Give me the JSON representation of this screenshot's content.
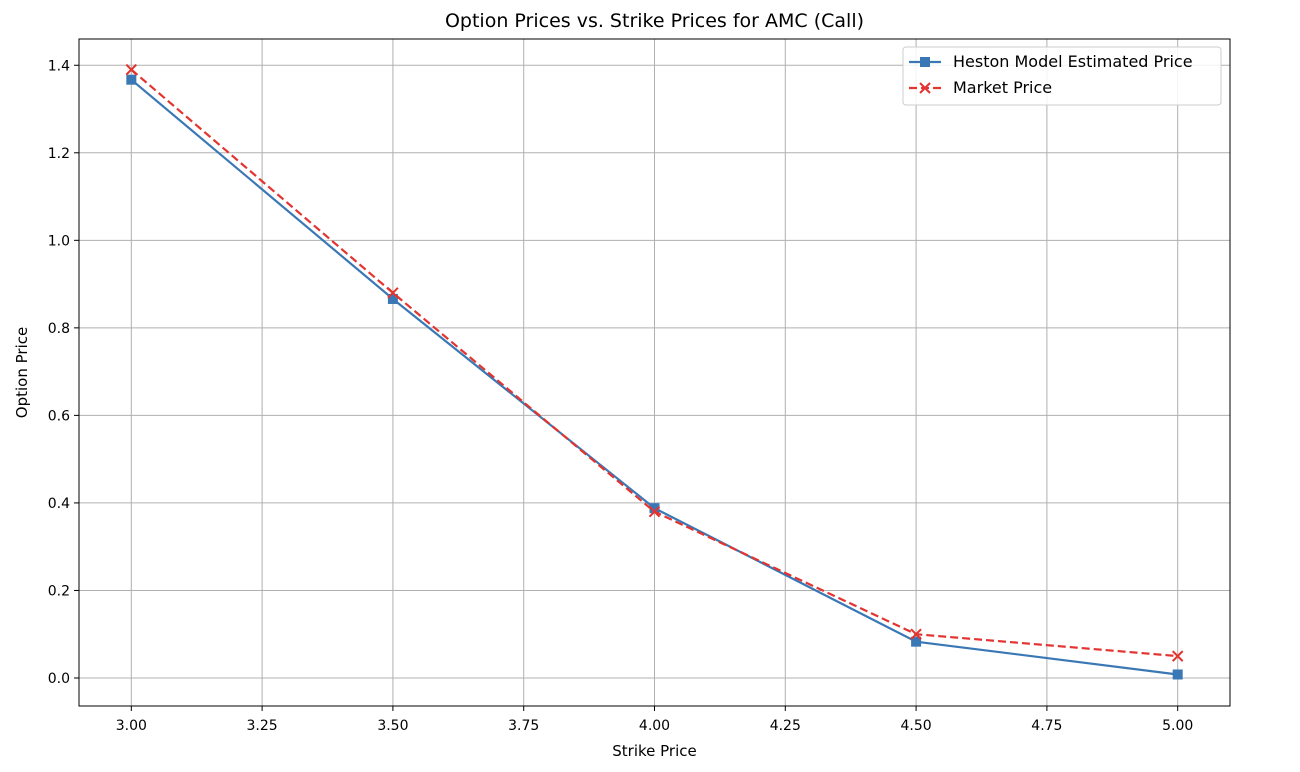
{
  "chart_data": {
    "type": "line",
    "title": "Option Prices vs. Strike Prices for AMC (Call)",
    "xlabel": "Strike Price",
    "ylabel": "Option Price",
    "x": [
      3.0,
      3.5,
      4.0,
      4.5,
      5.0
    ],
    "xlim": [
      2.9,
      5.1
    ],
    "ylim": [
      -0.064,
      1.46
    ],
    "xticks": [
      "3.00",
      "3.25",
      "3.50",
      "3.75",
      "4.00",
      "4.25",
      "4.50",
      "4.75",
      "5.00"
    ],
    "yticks": [
      "0.0",
      "0.2",
      "0.4",
      "0.6",
      "0.8",
      "1.0",
      "1.2",
      "1.4"
    ],
    "grid": true,
    "legend_position": "top-right",
    "series": [
      {
        "name": "Heston Model Estimated Price",
        "values": [
          1.367,
          0.866,
          0.388,
          0.083,
          0.008
        ],
        "color": "#3a78b5",
        "line_style": "solid",
        "marker": "square"
      },
      {
        "name": "Market Price",
        "values": [
          1.39,
          0.88,
          0.38,
          0.1,
          0.05
        ],
        "color": "#e3342f",
        "line_style": "dashed",
        "marker": "x"
      }
    ]
  }
}
